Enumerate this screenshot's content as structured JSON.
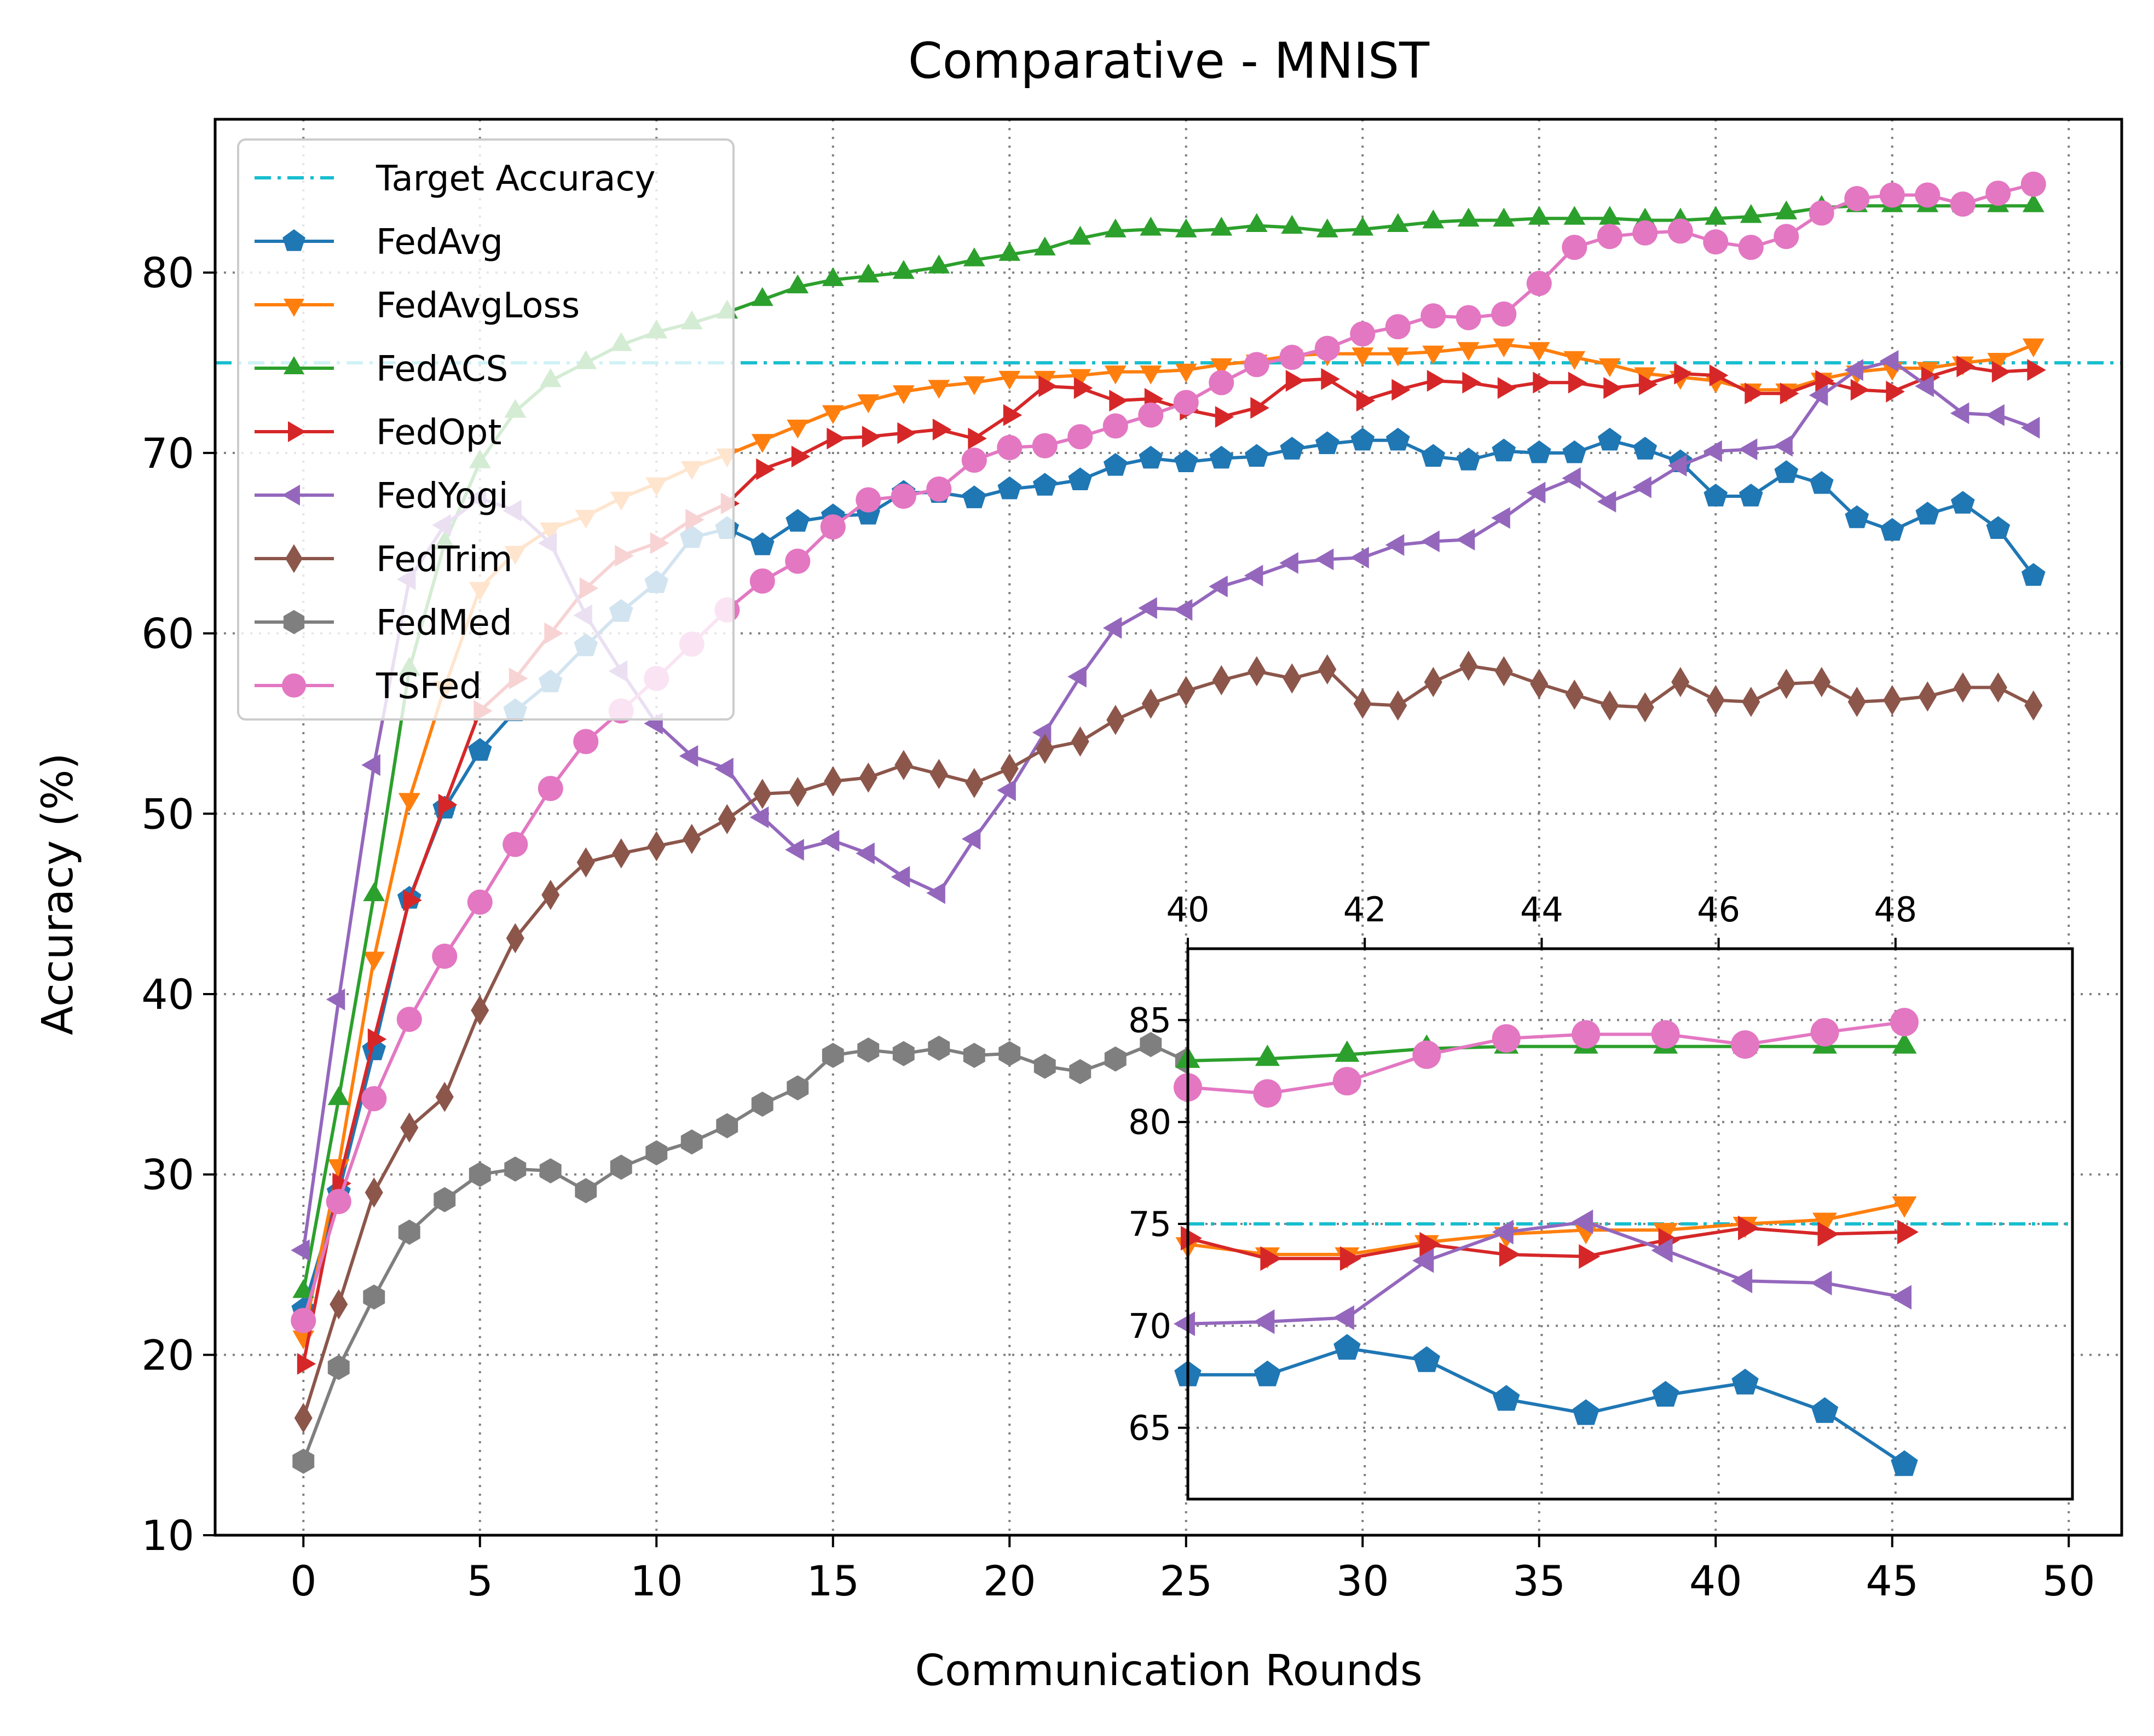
{
  "chart_data": {
    "type": "line",
    "title": "Comparative - MNIST",
    "xlabel": "Communication Rounds",
    "ylabel": "Accuracy (%)",
    "xlim": [
      -2.5,
      51.5
    ],
    "ylim": [
      10,
      88.5
    ],
    "x_ticks": [
      0,
      5,
      10,
      15,
      20,
      25,
      30,
      35,
      40,
      45,
      50
    ],
    "y_ticks": [
      10,
      20,
      30,
      40,
      50,
      60,
      70,
      80
    ],
    "grid": true,
    "legend_position": "upper-left",
    "target_accuracy": 75,
    "series": [
      {
        "name": "Target Accuracy",
        "color": "#17becf",
        "style": "dashdot",
        "marker": "none",
        "values": [
          75
        ]
      },
      {
        "name": "FedAvg",
        "color": "#1f77b4",
        "marker": "pentagon",
        "values": [
          22.5,
          29.0,
          36.9,
          45.3,
          50.3,
          53.5,
          55.7,
          57.3,
          59.3,
          61.2,
          62.8,
          65.3,
          65.8,
          64.9,
          66.2,
          66.5,
          66.6,
          67.8,
          67.8,
          67.5,
          68.0,
          68.2,
          68.5,
          69.3,
          69.7,
          69.5,
          69.7,
          69.8,
          70.2,
          70.5,
          70.7,
          70.7,
          69.8,
          69.6,
          70.1,
          70.0,
          70.0,
          70.7,
          70.2,
          69.5,
          67.6,
          67.6,
          68.9,
          68.3,
          66.4,
          65.7,
          66.6,
          67.2,
          65.8,
          63.2
        ]
      },
      {
        "name": "FedAvgLoss",
        "color": "#ff7f0e",
        "marker": "triangle-down",
        "values": [
          21.0,
          30.5,
          42.0,
          50.8,
          57.0,
          62.5,
          64.5,
          65.8,
          66.5,
          67.5,
          68.3,
          69.2,
          69.9,
          70.7,
          71.5,
          72.3,
          72.9,
          73.4,
          73.7,
          73.9,
          74.2,
          74.2,
          74.3,
          74.5,
          74.5,
          74.6,
          74.9,
          75.1,
          75.4,
          75.5,
          75.5,
          75.5,
          75.6,
          75.8,
          76.0,
          75.8,
          75.3,
          74.9,
          74.4,
          74.2,
          74.0,
          73.5,
          73.5,
          74.1,
          74.5,
          74.7,
          74.7,
          75.0,
          75.2,
          76.0
        ]
      },
      {
        "name": "FedACS",
        "color": "#2ca02c",
        "marker": "triangle-up",
        "values": [
          23.5,
          34.2,
          45.5,
          58.0,
          65.0,
          69.5,
          72.3,
          74.0,
          75.0,
          76.0,
          76.7,
          77.2,
          77.8,
          78.5,
          79.2,
          79.6,
          79.8,
          80.0,
          80.3,
          80.7,
          81.0,
          81.3,
          81.9,
          82.3,
          82.4,
          82.3,
          82.4,
          82.6,
          82.5,
          82.3,
          82.4,
          82.6,
          82.8,
          82.9,
          82.9,
          83.0,
          83.0,
          83.0,
          82.9,
          82.9,
          83.0,
          83.1,
          83.3,
          83.6,
          83.7,
          83.7,
          83.7,
          83.7,
          83.7,
          83.7
        ]
      },
      {
        "name": "FedOpt",
        "color": "#d62728",
        "marker": "triangle-right",
        "values": [
          19.5,
          29.5,
          37.5,
          45.2,
          50.5,
          55.7,
          57.5,
          60.0,
          62.5,
          64.3,
          65.0,
          66.3,
          67.2,
          69.1,
          69.8,
          70.8,
          70.9,
          71.1,
          71.3,
          70.8,
          72.1,
          73.7,
          73.6,
          72.9,
          73.0,
          72.4,
          72.0,
          72.5,
          74.0,
          74.1,
          72.9,
          73.5,
          74.0,
          73.9,
          73.6,
          73.9,
          73.9,
          73.6,
          73.8,
          74.4,
          74.3,
          73.3,
          73.3,
          74.0,
          73.5,
          73.4,
          74.2,
          74.8,
          74.5,
          74.6
        ]
      },
      {
        "name": "FedYogi",
        "color": "#9467bd",
        "marker": "triangle-left",
        "values": [
          25.8,
          39.7,
          52.7,
          63.0,
          66.0,
          67.5,
          66.8,
          65.0,
          61.0,
          57.9,
          55.0,
          53.2,
          52.5,
          49.8,
          48.0,
          48.5,
          47.8,
          46.5,
          45.6,
          48.6,
          51.3,
          54.5,
          57.6,
          60.3,
          61.4,
          61.3,
          62.6,
          63.2,
          63.9,
          64.1,
          64.2,
          64.9,
          65.1,
          65.2,
          66.4,
          67.8,
          68.6,
          67.3,
          68.1,
          69.3,
          70.1,
          70.2,
          70.4,
          73.2,
          74.6,
          75.1,
          73.7,
          72.2,
          72.1,
          71.4
        ]
      },
      {
        "name": "FedTrim",
        "color": "#8c564b",
        "marker": "diamond",
        "values": [
          16.5,
          22.8,
          29.0,
          32.6,
          34.3,
          39.1,
          43.1,
          45.5,
          47.3,
          47.8,
          48.2,
          48.6,
          49.7,
          51.1,
          51.2,
          51.8,
          52.0,
          52.7,
          52.2,
          51.7,
          52.5,
          53.6,
          54.0,
          55.2,
          56.1,
          56.8,
          57.4,
          57.9,
          57.5,
          58.0,
          56.1,
          56.0,
          57.3,
          58.2,
          57.9,
          57.2,
          56.6,
          56.0,
          55.9,
          57.3,
          56.3,
          56.2,
          57.2,
          57.3,
          56.2,
          56.3,
          56.5,
          57.0,
          57.0,
          56.0
        ]
      },
      {
        "name": "FedMed",
        "color": "#7f7f7f",
        "marker": "hexagon",
        "values": [
          14.1,
          19.3,
          23.2,
          26.8,
          28.6,
          30.0,
          30.3,
          30.2,
          29.1,
          30.4,
          31.2,
          31.8,
          32.7,
          33.9,
          34.8,
          36.6,
          36.9,
          36.7,
          37.0,
          36.6,
          36.7,
          36.0,
          35.7,
          36.4,
          37.2,
          36.3
        ]
      },
      {
        "name": "TSFed",
        "color": "#e377c2",
        "marker": "circle",
        "values": [
          21.9,
          28.5,
          34.2,
          38.6,
          42.1,
          45.1,
          48.3,
          51.4,
          54.0,
          55.7,
          57.5,
          59.4,
          61.3,
          62.9,
          64.0,
          65.9,
          67.4,
          67.6,
          68.0,
          69.6,
          70.3,
          70.4,
          70.9,
          71.5,
          72.1,
          72.8,
          73.9,
          74.9,
          75.3,
          75.8,
          76.6,
          77.0,
          77.6,
          77.5,
          77.7,
          79.4,
          81.4,
          82.0,
          82.2,
          82.3,
          81.7,
          81.4,
          82.0,
          83.3,
          84.1,
          84.3,
          84.3,
          83.8,
          84.4,
          84.9
        ]
      }
    ],
    "inset": {
      "x_ticks": [
        40,
        42,
        44,
        46,
        48
      ],
      "y_ticks": [
        65,
        70,
        75,
        80,
        85
      ],
      "xlim": [
        40,
        50
      ],
      "ylim": [
        61.5,
        88.5
      ]
    }
  }
}
